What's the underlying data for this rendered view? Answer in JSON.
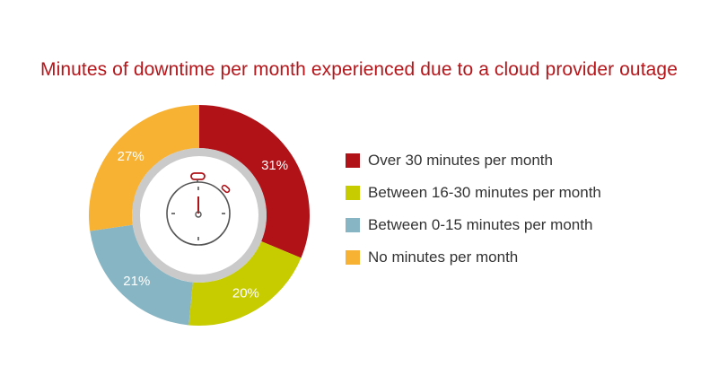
{
  "chart_data": {
    "type": "pie",
    "variant": "donut",
    "title": "Minutes of downtime per month experienced due to a cloud provider outage",
    "categories": [
      "Over 30 minutes per month",
      "Between 16-30 minutes per month",
      "Between 0-15 minutes per month",
      "No minutes per month"
    ],
    "values": [
      31,
      20,
      21,
      27
    ],
    "value_labels": [
      "31%",
      "20%",
      "21%",
      "27%"
    ],
    "colors": [
      "#b01218",
      "#c6cc00",
      "#87b5c3",
      "#f8b233"
    ],
    "legend_placement": "right",
    "center_icon": "stopwatch-icon"
  }
}
